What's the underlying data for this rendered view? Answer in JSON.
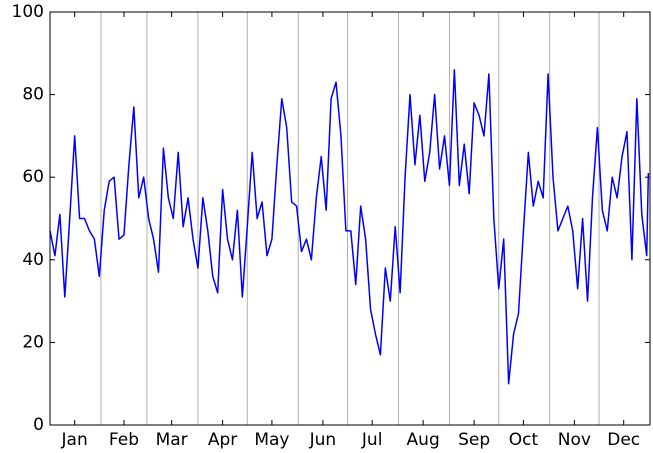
{
  "chart_data": {
    "type": "line",
    "x": [
      0,
      3,
      6,
      9,
      12,
      15,
      18,
      21,
      24,
      27,
      30,
      33,
      36,
      39,
      42,
      45,
      48,
      51,
      54,
      57,
      60,
      63,
      66,
      69,
      72,
      75,
      78,
      81,
      84,
      87,
      90,
      93,
      96,
      99,
      102,
      105,
      108,
      111,
      114,
      117,
      120,
      123,
      126,
      129,
      132,
      135,
      138,
      141,
      144,
      147,
      150,
      153,
      156,
      159,
      162,
      165,
      168,
      171,
      174,
      177,
      180,
      183,
      186,
      189,
      192,
      195,
      198,
      201,
      204,
      207,
      210,
      213,
      216,
      219,
      222,
      225,
      228,
      231,
      234,
      237,
      240,
      243,
      246,
      249,
      252,
      255,
      258,
      261,
      264,
      267,
      270,
      273,
      276,
      279,
      282,
      285,
      288,
      291,
      294,
      297,
      300,
      303,
      306,
      309,
      312,
      315,
      318,
      321,
      324,
      327,
      330,
      333,
      336,
      339,
      342,
      345,
      348,
      351,
      354,
      357,
      360,
      363,
      364
    ],
    "series": [
      {
        "color": "#0000ff",
        "values": [
          47,
          41,
          51,
          31,
          50,
          70,
          50,
          50,
          47,
          45,
          36,
          52,
          59,
          60,
          45,
          46,
          63,
          77,
          55,
          60,
          50,
          45,
          37,
          67,
          55,
          50,
          66,
          48,
          55,
          45,
          38,
          55,
          47,
          36,
          32,
          57,
          45,
          40,
          52,
          31,
          48,
          66,
          50,
          54,
          41,
          45,
          63,
          79,
          72,
          54,
          53,
          42,
          45,
          40,
          55,
          65,
          52,
          79,
          83,
          70,
          47,
          47,
          34,
          53,
          45,
          28,
          22,
          17,
          38,
          30,
          48,
          32,
          60,
          80,
          63,
          75,
          59,
          66,
          80,
          62,
          70,
          58,
          86,
          58,
          68,
          56,
          78,
          75,
          70,
          85,
          50,
          33,
          45,
          10,
          22,
          27,
          47,
          66,
          53,
          59,
          55,
          85,
          60,
          47,
          50,
          53,
          47,
          33,
          50,
          30,
          55,
          72,
          52,
          47,
          60,
          55,
          65,
          71,
          40,
          79,
          51,
          41,
          61
        ]
      }
    ],
    "xlim": [
      0,
      365
    ],
    "xticks": [
      {
        "value": 15,
        "label": "Jan"
      },
      {
        "value": 45,
        "label": "Feb"
      },
      {
        "value": 74,
        "label": "Mar"
      },
      {
        "value": 105,
        "label": "Apr"
      },
      {
        "value": 135,
        "label": "May"
      },
      {
        "value": 166,
        "label": "Jun"
      },
      {
        "value": 196,
        "label": "Jul"
      },
      {
        "value": 227,
        "label": "Aug"
      },
      {
        "value": 258,
        "label": "Sep"
      },
      {
        "value": 288,
        "label": "Oct"
      },
      {
        "value": 319,
        "label": "Nov"
      },
      {
        "value": 349,
        "label": "Dec"
      }
    ],
    "minor_xticks": [
      31,
      59,
      90,
      120,
      151,
      181,
      212,
      243,
      273,
      304,
      334
    ],
    "ylim": [
      0,
      100
    ],
    "yticks": [
      0,
      20,
      40,
      60,
      80,
      100
    ],
    "grid": true
  }
}
